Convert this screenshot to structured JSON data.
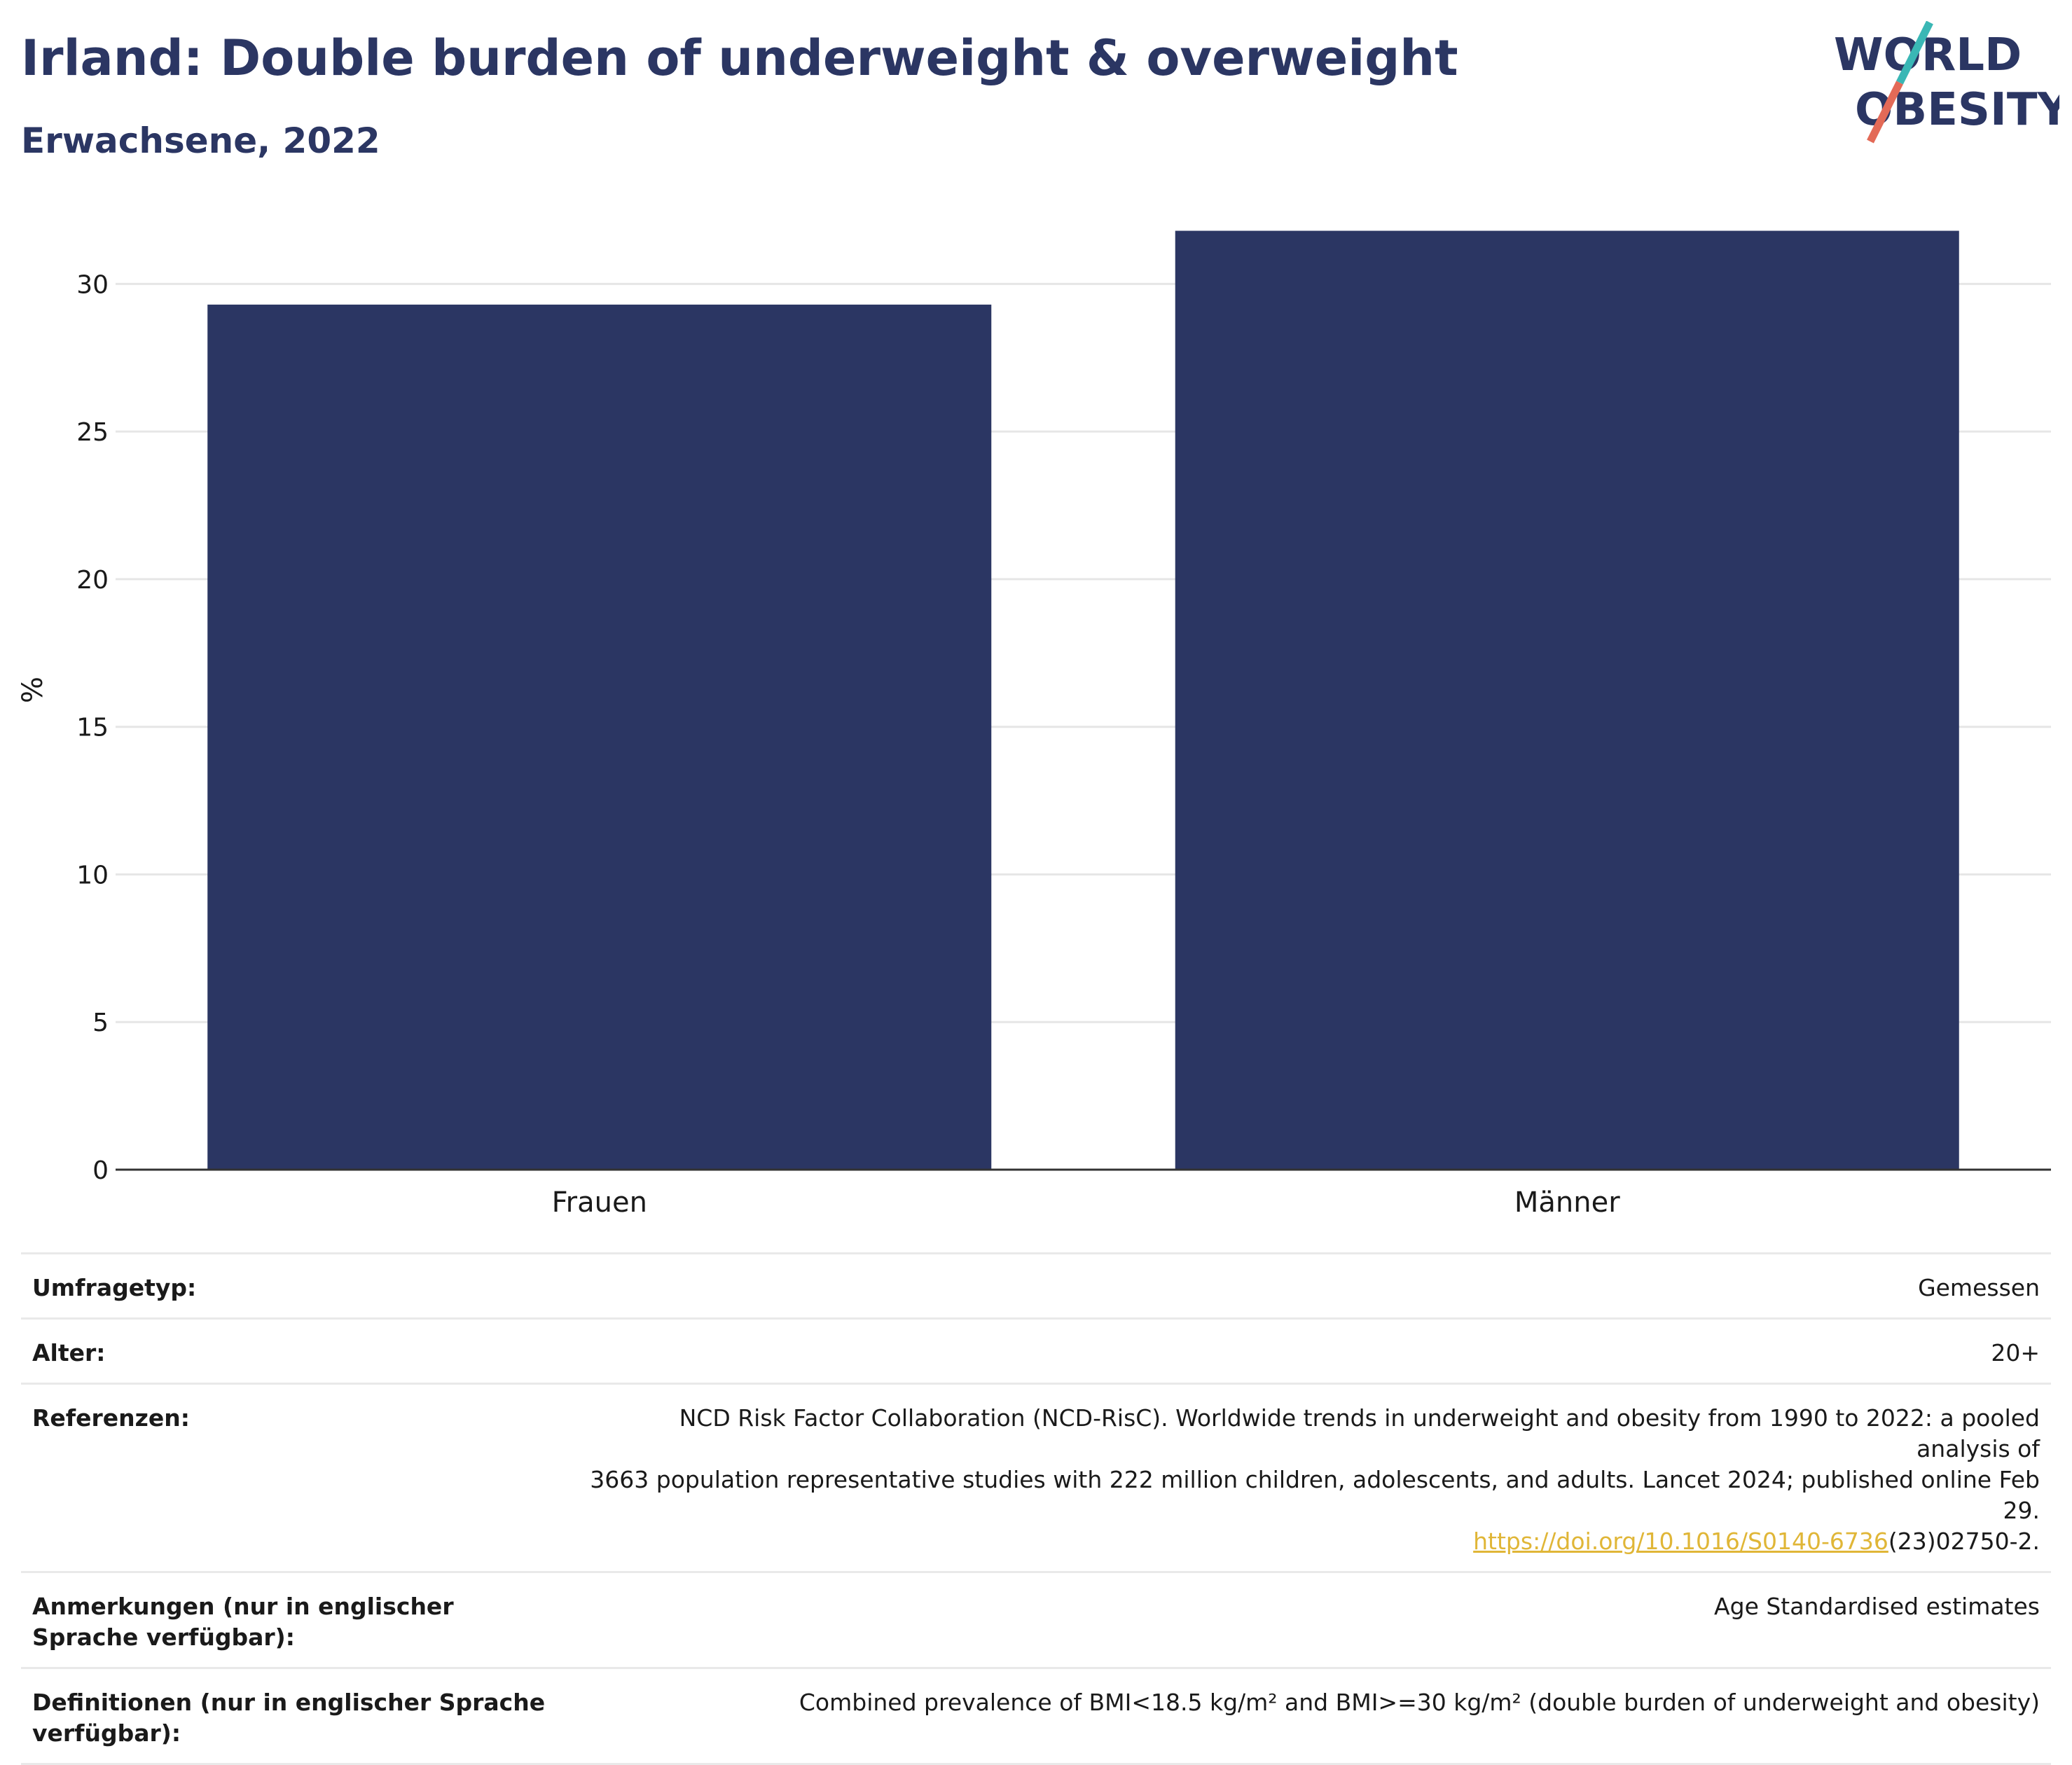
{
  "header": {
    "title": "Irland: Double burden of underweight & overweight",
    "subtitle": "Erwachsene, 2022"
  },
  "logo": {
    "line1": "WORLD",
    "line2": "OBESITY",
    "colors": {
      "text": "#2b3663",
      "slash_top": "#3ab7b5",
      "slash_bottom": "#e36a57"
    }
  },
  "chart_data": {
    "type": "bar",
    "categories": [
      "Frauen",
      "Männer"
    ],
    "values": [
      29.3,
      31.8
    ],
    "ylabel": "%",
    "ylim": [
      0,
      32.5
    ],
    "yticks": [
      0,
      5,
      10,
      15,
      20,
      25,
      30
    ],
    "grid": true,
    "bar_color": "#2b3663"
  },
  "meta": {
    "survey_label": "Umfragetyp:",
    "survey_value": "Gemessen",
    "age_label": "Alter:",
    "age_value": "20+",
    "ref_label": "Referenzen:",
    "ref_line1": "NCD Risk Factor Collaboration (NCD-RisC). Worldwide trends in underweight and obesity from 1990 to 2022: a pooled analysis of",
    "ref_line2": "3663 population representative studies with 222 million children, adolescents, and adults. Lancet 2024; published online Feb 29.",
    "ref_doi": "https://doi.org/10.1016/S0140-6736",
    "ref_doi_tail": "(23)02750-2.",
    "notes_label": "Anmerkungen (nur in englischer Sprache verfügbar):",
    "notes_value": "Age Standardised estimates",
    "def_label": "Definitionen (nur in englischer Sprache verfügbar):",
    "def_value": "Combined prevalence of BMI<18.5 kg/m² and BMI>=30 kg/m² (double burden of underweight and obesity)"
  }
}
